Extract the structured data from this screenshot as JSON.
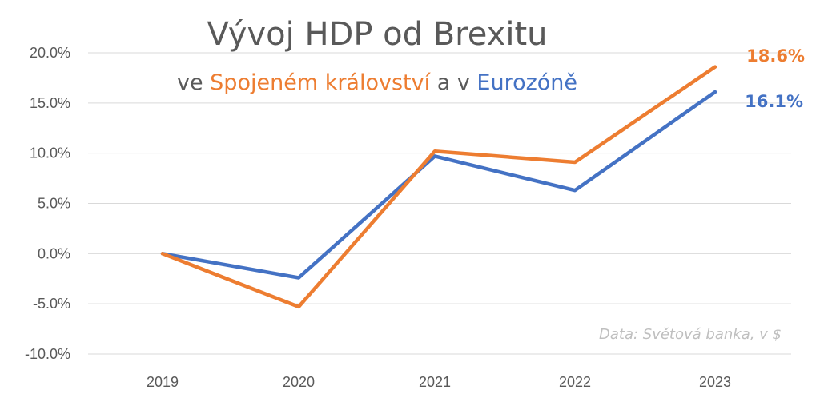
{
  "colors": {
    "uk": "#ed7d31",
    "eurozone": "#4472c4",
    "grid": "#d9d9d9",
    "text": "#595959",
    "source": "#bfbfbf"
  },
  "chart_data": {
    "type": "line",
    "title": "Vývoj HDP od Brexitu",
    "subtitle": {
      "part1": "ve ",
      "uk": "Spojeném království",
      "part2": " a v ",
      "eurozone": "Eurozóně"
    },
    "categories": [
      "2019",
      "2020",
      "2021",
      "2022",
      "2023"
    ],
    "y_ticks": [
      "20.0%",
      "15.0%",
      "10.0%",
      "5.0%",
      "0.0%",
      "-5.0%",
      "-10.0%"
    ],
    "ylim": [
      -10,
      20
    ],
    "grid": true,
    "legend": "none",
    "series": [
      {
        "key": "uk",
        "values": [
          0.0,
          -5.3,
          10.2,
          9.1,
          18.6
        ],
        "end_label": "18.6%"
      },
      {
        "key": "eurozone",
        "values": [
          0.0,
          -2.4,
          9.7,
          6.3,
          16.1
        ],
        "end_label": "16.1%"
      }
    ],
    "source_note": "Data: Světová banka, v $"
  }
}
